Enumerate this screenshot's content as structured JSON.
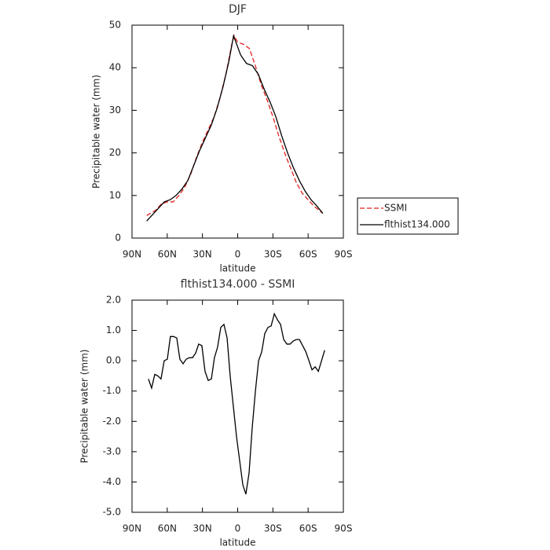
{
  "chart_data": [
    {
      "type": "line",
      "title": "DJF",
      "xlabel": "latitude",
      "ylabel": "Precipitable water (mm)",
      "xlim": [
        90,
        -90
      ],
      "xticks": [
        {
          "value": 90,
          "label": "90N"
        },
        {
          "value": 60,
          "label": "60N"
        },
        {
          "value": 30,
          "label": "30N"
        },
        0,
        {
          "value": -30,
          "label": "30S"
        },
        {
          "value": -60,
          "label": "60S"
        },
        {
          "value": -90,
          "label": "90S"
        }
      ],
      "ylim": [
        0,
        50
      ],
      "yticks": [
        0,
        10,
        20,
        30,
        40,
        50
      ],
      "legend": "right",
      "series": [
        {
          "name": "SSMI",
          "color": "#e0201b",
          "dash": true,
          "x": [
            77.5,
            70,
            65,
            60,
            55,
            50,
            45,
            40,
            35,
            30,
            25,
            20,
            15,
            10,
            5,
            3,
            0,
            -5,
            -10,
            -15,
            -20,
            -25,
            -30,
            -35,
            -40,
            -45,
            -50,
            -55,
            -60,
            -65,
            -72.5
          ],
          "values": [
            5.3,
            6.5,
            8.0,
            8.5,
            8.5,
            10.0,
            12.0,
            15.0,
            19.0,
            22.5,
            25.5,
            28.5,
            33.0,
            38.5,
            45.5,
            47.5,
            46.0,
            45.5,
            44.5,
            40.5,
            36.0,
            32.5,
            28.5,
            24.0,
            20.0,
            16.5,
            13.0,
            10.5,
            9.0,
            7.5,
            5.8
          ]
        },
        {
          "name": "flthist134.000",
          "color": "#000000",
          "dash": false,
          "x": [
            77.5,
            72.5,
            67.5,
            62.5,
            57.5,
            52.5,
            47.5,
            42.5,
            37.5,
            32.5,
            27.5,
            22.5,
            17.5,
            12.5,
            7.5,
            3.5,
            -2.5,
            -7.5,
            -12.5,
            -17.5,
            -22.5,
            -27.5,
            -32.5,
            -37.5,
            -42.5,
            -47.5,
            -52.5,
            -57.5,
            -62.5,
            -67.5,
            -72.5
          ],
          "values": [
            4.0,
            5.5,
            7.0,
            8.5,
            9.0,
            10.0,
            11.5,
            13.5,
            17.0,
            20.5,
            23.5,
            26.5,
            30.5,
            35.5,
            41.5,
            47.5,
            43.0,
            41.0,
            40.5,
            38.5,
            35.0,
            32.0,
            28.5,
            24.0,
            20.0,
            16.5,
            13.5,
            11.0,
            9.0,
            7.5,
            5.8
          ]
        }
      ]
    },
    {
      "type": "line",
      "title": "flthist134.000 - SSMI",
      "xlabel": "latitude",
      "ylabel": "Precipitable water (mm)",
      "xlim": [
        90,
        -90
      ],
      "xticks": [
        {
          "value": 90,
          "label": "90N"
        },
        {
          "value": 60,
          "label": "60N"
        },
        {
          "value": 30,
          "label": "30N"
        },
        0,
        {
          "value": -30,
          "label": "30S"
        },
        {
          "value": -60,
          "label": "60S"
        },
        {
          "value": -90,
          "label": "90S"
        }
      ],
      "ylim": [
        -5,
        2
      ],
      "yticks": [
        {
          "value": 2,
          "label": "2.0"
        },
        {
          "value": 1,
          "label": "1.0"
        },
        {
          "value": 0,
          "label": "0.0"
        },
        {
          "value": -1,
          "label": "-1.0"
        },
        {
          "value": -2,
          "label": "-2.0"
        },
        {
          "value": -3,
          "label": "-3.0"
        },
        {
          "value": -4,
          "label": "-4.0"
        },
        {
          "value": -5,
          "label": "-5.0"
        }
      ],
      "series": [
        {
          "color": "#000000",
          "dash": false,
          "x": [
            76.0,
            73.3,
            70.6,
            68.0,
            65.3,
            62.6,
            59.9,
            57.3,
            54.6,
            51.9,
            49.2,
            46.5,
            43.9,
            41.2,
            38.5,
            35.8,
            33.2,
            30.5,
            27.8,
            25.1,
            22.4,
            19.8,
            17.1,
            14.4,
            11.7,
            9.0,
            6.4,
            3.7,
            1.0,
            -1.7,
            -4.4,
            -7.0,
            -9.7,
            -12.4,
            -15.1,
            -17.8,
            -20.5,
            -23.1,
            -25.8,
            -28.5,
            -31.2,
            -33.9,
            -36.5,
            -39.2,
            -41.9,
            -44.6,
            -47.3,
            -49.9,
            -52.6,
            -55.3,
            -58.0,
            -60.7,
            -63.3,
            -66.0,
            -68.7,
            -71.4,
            -74.1
          ],
          "values": [
            -0.6,
            -0.9,
            -0.45,
            -0.5,
            -0.6,
            0.0,
            0.05,
            0.8,
            0.8,
            0.75,
            0.05,
            -0.1,
            0.05,
            0.1,
            0.1,
            0.25,
            0.55,
            0.5,
            -0.35,
            -0.65,
            -0.6,
            0.1,
            0.45,
            1.1,
            1.2,
            0.75,
            -0.5,
            -1.5,
            -2.5,
            -3.3,
            -4.1,
            -4.4,
            -3.7,
            -2.2,
            -1.0,
            0.0,
            0.3,
            0.9,
            1.1,
            1.15,
            1.55,
            1.35,
            1.2,
            0.7,
            0.55,
            0.55,
            0.65,
            0.7,
            0.7,
            0.5,
            0.3,
            0.0,
            -0.3,
            -0.2,
            -0.35,
            0.0,
            0.35
          ]
        }
      ]
    }
  ]
}
